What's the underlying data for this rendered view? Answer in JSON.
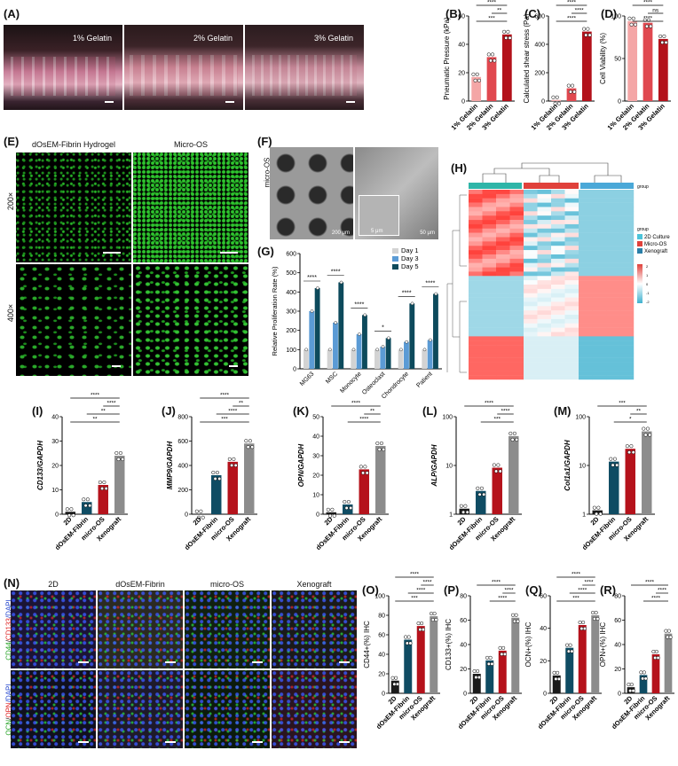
{
  "panels": {
    "A": {
      "label": "(A)",
      "photos": [
        "1% Gelatin",
        "2% Gelatin",
        "3% Gelatin"
      ]
    },
    "B": {
      "label": "(B)"
    },
    "C": {
      "label": "(C)"
    },
    "D": {
      "label": "(D)"
    },
    "E": {
      "label": "(E)",
      "cols": [
        "dOsEM-Fibrin Hydrogel",
        "Micro-OS"
      ],
      "rows": [
        "200×",
        "400×"
      ]
    },
    "F": {
      "label": "(F)",
      "side": "micro-OS",
      "scales": [
        "200 μm",
        "5 μm",
        "50 μm"
      ]
    },
    "G": {
      "label": "(G)"
    },
    "H": {
      "label": "(H)",
      "legend_title": "group",
      "top_label": "group",
      "groups": [
        "2D Culture",
        "Micro-OS",
        "Xenograft"
      ],
      "scale_ticks": [
        "2",
        "1",
        "0",
        "-1",
        "-2"
      ]
    },
    "I": {
      "label": "(I)"
    },
    "J": {
      "label": "(J)"
    },
    "K": {
      "label": "(K)"
    },
    "L": {
      "label": "(L)"
    },
    "M": {
      "label": "(M)"
    },
    "N": {
      "label": "(N)",
      "cols": [
        "2D",
        "dOsEM-Fibrin",
        "micro-OS",
        "Xenograft"
      ],
      "row1": [
        "CD44",
        "/",
        "CD133",
        "/DAPI"
      ],
      "row2": [
        "OCN",
        "/",
        "OPN",
        "/DAPI"
      ]
    },
    "O": {
      "label": "(O)"
    },
    "P": {
      "label": "(P)"
    },
    "Q": {
      "label": "(Q)"
    },
    "R": {
      "label": "(R)"
    }
  },
  "colors": {
    "light_red": "#f4a6a6",
    "mid_red": "#e0484f",
    "dark_red": "#b3121b",
    "black": "#1a1a1a",
    "teal": "#0f4c63",
    "crimson": "#b5121b",
    "gray": "#8c8c8c",
    "day1": "#d3d3d3",
    "day3": "#5b9bd5",
    "day5": "#0d4a5c",
    "heat_low": "#3fb1cf",
    "heat_high": "#e0413b"
  },
  "chart_data": [
    {
      "id": "B",
      "type": "bar",
      "ylabel": "Pneumatic Pressure (kPa)",
      "ylim": [
        0,
        60
      ],
      "yticks": [
        "0",
        "20",
        "40",
        "60"
      ],
      "categories": [
        "1% Gelatin",
        "2% Gelatin",
        "3% Gelatin"
      ],
      "values": [
        17,
        31,
        47
      ],
      "sig": [
        "****",
        "**",
        "***"
      ]
    },
    {
      "id": "C",
      "type": "bar",
      "ylabel": "Calculated shear stress (Pa)",
      "ylim": [
        0,
        600
      ],
      "yticks": [
        "0",
        "200",
        "400",
        "600"
      ],
      "categories": [
        "1% Gelatin",
        "2% Gelatin",
        "3% Gelatin"
      ],
      "values": [
        8,
        90,
        490
      ],
      "sig": [
        "****",
        "****",
        "****"
      ]
    },
    {
      "id": "D",
      "type": "bar",
      "ylabel": "Cell Viability (%)",
      "ylim": [
        0,
        100
      ],
      "yticks": [
        "0",
        "50",
        "100"
      ],
      "categories": [
        "1% Gelatin",
        "2% Gelatin",
        "3% Gelatin"
      ],
      "values": [
        94,
        92,
        73
      ],
      "sig": [
        "****",
        "ns",
        "****"
      ]
    },
    {
      "id": "G",
      "type": "bar",
      "ylabel": "Relative Proliferation Rate (%)",
      "ylim": [
        0,
        600
      ],
      "yticks": [
        "0",
        "100",
        "200",
        "300",
        "400",
        "500",
        "600"
      ],
      "categories": [
        "MG63",
        "MSC",
        "Monocyte",
        "Osteoclast",
        "Chondrocyte",
        "Patient"
      ],
      "series": [
        {
          "name": "Day 1",
          "values": [
            100,
            100,
            100,
            100,
            100,
            100
          ]
        },
        {
          "name": "Day 3",
          "values": [
            300,
            240,
            180,
            115,
            140,
            150
          ]
        },
        {
          "name": "Day 5",
          "values": [
            420,
            450,
            280,
            160,
            340,
            390
          ]
        }
      ],
      "sig": [
        "****",
        "****",
        "****",
        "*",
        "****",
        "****"
      ]
    },
    {
      "id": "I",
      "type": "bar",
      "ylabel": "CD133/GAPDH",
      "ylim": [
        0,
        40
      ],
      "yticks": [
        "0",
        "10",
        "20",
        "30",
        "40"
      ],
      "categories": [
        "2D",
        "dOsEM-Fibrin",
        "micro-OS",
        "Xenograft"
      ],
      "values": [
        1,
        5,
        12,
        24
      ],
      "sig": [
        "****",
        "****",
        "**",
        "**"
      ]
    },
    {
      "id": "J",
      "type": "bar",
      "ylabel": "MMP9/GAPDH",
      "ylim": [
        0,
        800
      ],
      "yticks": [
        "0",
        "200",
        "400",
        "600",
        "800"
      ],
      "categories": [
        "2D",
        "dOsEM-Fibrin",
        "micro-OS",
        "Xenograft"
      ],
      "values": [
        2,
        320,
        430,
        580
      ],
      "sig": [
        "****",
        "**",
        "****",
        "***"
      ]
    },
    {
      "id": "K",
      "type": "bar",
      "ylabel": "OPN/GAPDH",
      "ylim": [
        0,
        50
      ],
      "yticks": [
        "0",
        "10",
        "20",
        "30",
        "40",
        "50"
      ],
      "categories": [
        "2D",
        "dOsEM-Fibrin",
        "micro-OS",
        "Xenograft"
      ],
      "values": [
        1,
        5,
        23,
        35
      ],
      "sig": [
        "****",
        "**",
        "****"
      ]
    },
    {
      "id": "L",
      "type": "bar",
      "scale": "log",
      "ylabel": "ALP/GAPDH",
      "ylim": [
        1,
        100
      ],
      "yticks": [
        "1",
        "10",
        "100"
      ],
      "categories": [
        "2D",
        "dOsEM-Fibrin",
        "micro-OS",
        "Xenograft"
      ],
      "values": [
        1.3,
        3,
        9,
        40
      ],
      "sig": [
        "****",
        "****",
        "***"
      ]
    },
    {
      "id": "M",
      "type": "bar",
      "scale": "log",
      "ylabel": "Col1a1/GAPDH",
      "ylim": [
        1,
        100
      ],
      "yticks": [
        "1",
        "10",
        "100"
      ],
      "categories": [
        "2D",
        "dOsEM-Fibrin",
        "micro-OS",
        "Xenograft"
      ],
      "values": [
        1.2,
        12,
        22,
        50
      ],
      "sig": [
        "***",
        "**",
        "*"
      ]
    },
    {
      "id": "O",
      "type": "bar",
      "ylabel": "CD44+(%) IHC",
      "ylim": [
        0,
        100
      ],
      "yticks": [
        "0",
        "20",
        "40",
        "60",
        "80",
        "100"
      ],
      "categories": [
        "2D",
        "dOsEM-Fibrin",
        "micro-OS",
        "Xenograft"
      ],
      "values": [
        13,
        55,
        69,
        79
      ],
      "sig": [
        "****",
        "****",
        "****",
        "***"
      ]
    },
    {
      "id": "P",
      "type": "bar",
      "ylabel": "CD133+(%) IHC",
      "ylim": [
        0,
        80
      ],
      "yticks": [
        "0",
        "20",
        "40",
        "60",
        "80"
      ],
      "categories": [
        "2D",
        "dOsEM-Fibrin",
        "micro-OS",
        "Xenograft"
      ],
      "values": [
        16,
        27,
        35,
        62
      ],
      "sig": [
        "****",
        "****",
        "****"
      ]
    },
    {
      "id": "Q",
      "type": "bar",
      "ylabel": "OCN+(%) IHC",
      "ylim": [
        0,
        60
      ],
      "yticks": [
        "0",
        "20",
        "40",
        "60"
      ],
      "categories": [
        "2D",
        "dOsEM-Fibrin",
        "micro-OS",
        "Xenograft"
      ],
      "values": [
        11,
        28,
        42,
        48
      ],
      "sig": [
        "****",
        "****",
        "****",
        "***"
      ]
    },
    {
      "id": "R",
      "type": "bar",
      "ylabel": "OPN+(%) IHC",
      "ylim": [
        0,
        80
      ],
      "yticks": [
        "0",
        "20",
        "40",
        "60",
        "80"
      ],
      "categories": [
        "2D",
        "dOsEM-Fibrin",
        "micro-OS",
        "Xenograft"
      ],
      "values": [
        5,
        15,
        32,
        49
      ],
      "sig": [
        "****",
        "****",
        "****"
      ]
    }
  ]
}
